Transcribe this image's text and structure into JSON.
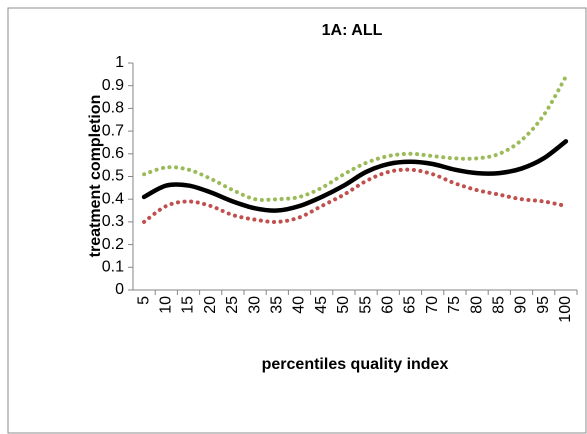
{
  "chart_data": {
    "type": "line",
    "title": "1A: ALL",
    "x_label": "percentiles quality index",
    "y_label": "treatment completion",
    "categories": [
      "5",
      "10",
      "15",
      "20",
      "25",
      "30",
      "35",
      "40",
      "45",
      "50",
      "55",
      "60",
      "65",
      "70",
      "75",
      "80",
      "85",
      "90",
      "95",
      "100"
    ],
    "series": [
      {
        "color": "#9bbb59",
        "style": "dotted",
        "values": [
          0.51,
          0.54,
          0.53,
          0.49,
          0.44,
          0.4,
          0.4,
          0.41,
          0.45,
          0.51,
          0.56,
          0.59,
          0.6,
          0.59,
          0.58,
          0.58,
          0.6,
          0.66,
          0.77,
          0.94
        ]
      },
      {
        "color": "#c0504d",
        "style": "dotted",
        "values": [
          0.3,
          0.37,
          0.39,
          0.37,
          0.33,
          0.31,
          0.3,
          0.32,
          0.37,
          0.42,
          0.48,
          0.52,
          0.53,
          0.51,
          0.47,
          0.44,
          0.42,
          0.4,
          0.39,
          0.37
        ]
      },
      {
        "color": "#000000",
        "style": "solid",
        "values": [
          0.41,
          0.46,
          0.46,
          0.43,
          0.39,
          0.36,
          0.35,
          0.37,
          0.41,
          0.46,
          0.52,
          0.555,
          0.565,
          0.555,
          0.53,
          0.515,
          0.515,
          0.535,
          0.58,
          0.655
        ]
      }
    ],
    "ylim": [
      0,
      1
    ],
    "yticks": [
      0,
      0.1,
      0.2,
      0.3,
      0.4,
      0.5,
      0.6,
      0.7,
      0.8,
      0.9,
      1
    ],
    "grid": false
  }
}
